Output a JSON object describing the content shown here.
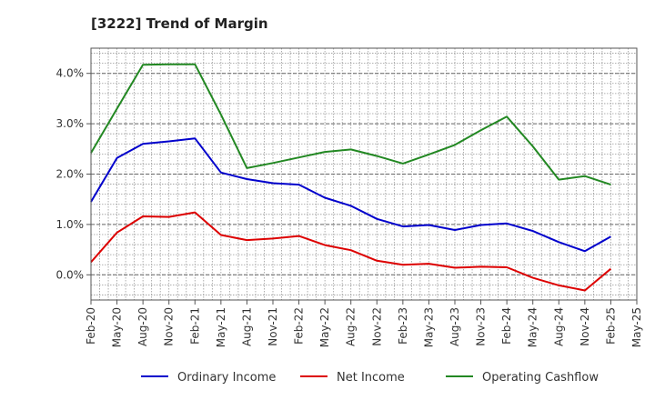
{
  "chart_data": {
    "type": "line",
    "title": "[3222]  Trend of Margin",
    "x": [
      "Feb-20",
      "May-20",
      "Aug-20",
      "Nov-20",
      "Feb-21",
      "May-21",
      "Aug-21",
      "Nov-21",
      "Feb-22",
      "May-22",
      "Aug-22",
      "Nov-22",
      "Feb-23",
      "May-23",
      "Aug-23",
      "Nov-23",
      "Feb-24",
      "May-24",
      "Aug-24",
      "Nov-24",
      "Feb-25",
      "May-25"
    ],
    "ylim": [
      -0.5,
      4.5
    ],
    "yticks": [
      0.0,
      1.0,
      2.0,
      3.0,
      4.0
    ],
    "ytick_labels": [
      "0.0%",
      "1.0%",
      "2.0%",
      "3.0%",
      "4.0%"
    ],
    "grid": true,
    "legend_position": "bottom",
    "series": [
      {
        "name": "Ordinary Income",
        "color": "#0000cc",
        "values": [
          1.45,
          2.32,
          2.6,
          2.65,
          2.71,
          2.03,
          1.9,
          1.82,
          1.79,
          1.53,
          1.37,
          1.11,
          0.96,
          0.99,
          0.89,
          0.99,
          1.02,
          0.87,
          0.65,
          0.47,
          0.76,
          null
        ]
      },
      {
        "name": "Net Income",
        "color": "#dd0000",
        "values": [
          0.25,
          0.84,
          1.16,
          1.15,
          1.24,
          0.79,
          0.69,
          0.72,
          0.77,
          0.59,
          0.49,
          0.28,
          0.2,
          0.22,
          0.14,
          0.16,
          0.15,
          -0.06,
          -0.21,
          -0.31,
          0.12,
          null
        ]
      },
      {
        "name": "Operating Cashflow",
        "color": "#228822",
        "values": [
          2.42,
          3.3,
          4.17,
          4.18,
          4.18,
          3.18,
          2.12,
          2.22,
          2.33,
          2.44,
          2.49,
          2.36,
          2.21,
          2.39,
          2.58,
          2.87,
          3.14,
          2.55,
          1.89,
          1.96,
          1.79,
          null
        ]
      }
    ]
  }
}
